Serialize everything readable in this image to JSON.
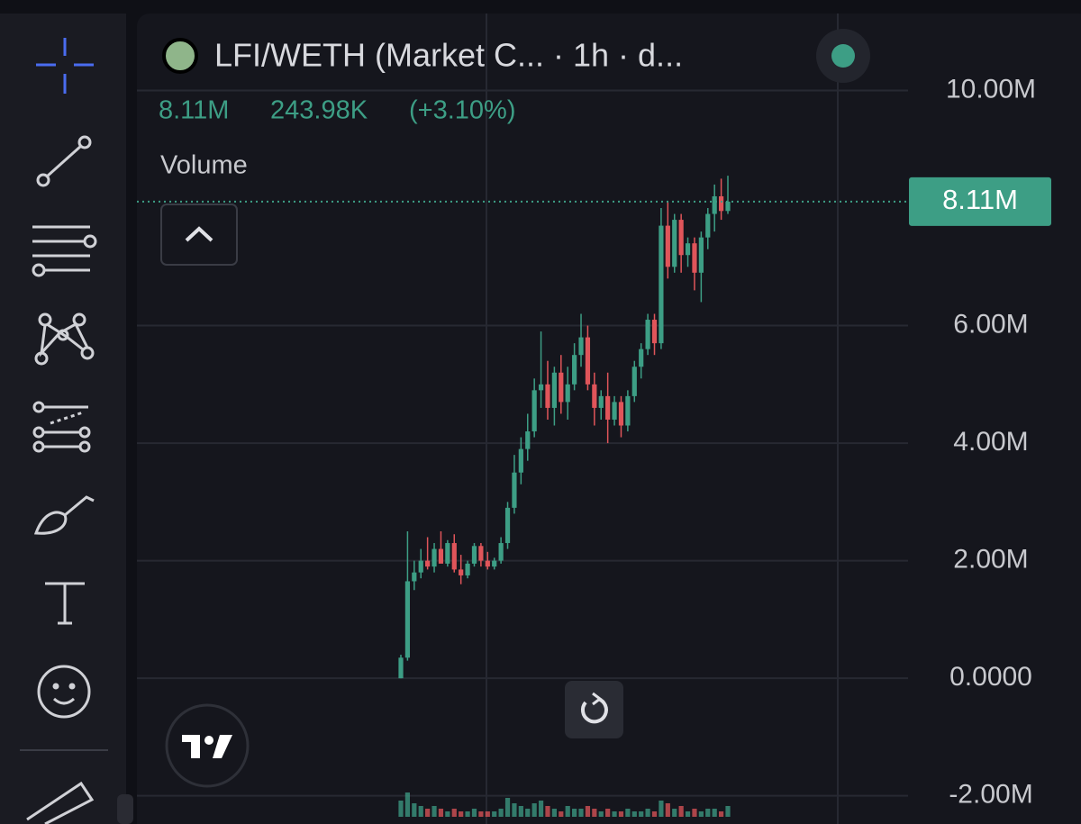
{
  "chart_data": {
    "type": "candlestick",
    "title": "LFI/WETH (Market C...  · 1h · d...",
    "legend_values": [
      "8.11M",
      "243.98K",
      "(+3.10%)"
    ],
    "volume_label": "Volume",
    "ylim": [
      -2.48,
      11.31
    ],
    "yticks": [
      {
        "value": -2,
        "label": "-2.00M"
      },
      {
        "value": 0,
        "label": "0.0000"
      },
      {
        "value": 2,
        "label": "2.00M"
      },
      {
        "value": 4,
        "label": "4.00M"
      },
      {
        "value": 6,
        "label": "6.00M"
      },
      {
        "value": 10,
        "label": "10.00M"
      }
    ],
    "grid": true,
    "up_color": "#3d9e85",
    "down_color": "#e0555a",
    "last_price": {
      "value": 8.11,
      "label": "8.11M"
    },
    "open": [
      0,
      0.35,
      1.65,
      1.8,
      2.0,
      1.9,
      2.2,
      1.95,
      2.3,
      1.85,
      1.75,
      1.95,
      2.25,
      2.0,
      1.9,
      2.0,
      2.3,
      2.9,
      3.5,
      3.9,
      4.2,
      4.9,
      5.0,
      4.6,
      5.2,
      4.7,
      5.0,
      5.5,
      5.8,
      5.0,
      4.6,
      4.8,
      4.4,
      4.7,
      4.3,
      4.8,
      5.3,
      5.6,
      6.1,
      5.7,
      7.7,
      7.0,
      7.8,
      7.2,
      7.4,
      6.9,
      7.5,
      7.9,
      8.2,
      7.95
    ],
    "high": [
      0.4,
      2.5,
      2.0,
      2.2,
      2.4,
      2.3,
      2.5,
      2.35,
      2.45,
      2.1,
      2.0,
      2.3,
      2.3,
      2.15,
      2.05,
      2.4,
      3.0,
      3.8,
      4.1,
      4.5,
      5.1,
      5.9,
      5.4,
      5.3,
      5.5,
      5.3,
      5.7,
      6.2,
      6.0,
      5.2,
      4.9,
      5.2,
      4.8,
      4.8,
      4.9,
      5.4,
      5.7,
      6.2,
      6.2,
      8.0,
      8.1,
      7.9,
      7.9,
      7.5,
      7.5,
      7.6,
      8.0,
      8.4,
      8.5,
      8.55
    ],
    "low": [
      0,
      0.3,
      1.5,
      1.7,
      1.85,
      1.8,
      2.0,
      1.9,
      1.8,
      1.6,
      1.7,
      1.9,
      1.9,
      1.85,
      1.85,
      1.95,
      2.2,
      2.8,
      3.3,
      3.7,
      4.1,
      4.6,
      4.4,
      4.3,
      4.5,
      4.4,
      4.9,
      5.3,
      4.9,
      4.3,
      4.4,
      4.0,
      4.3,
      4.1,
      4.2,
      4.7,
      5.1,
      5.5,
      5.5,
      5.6,
      6.8,
      6.9,
      6.9,
      7.0,
      6.6,
      6.4,
      7.3,
      7.6,
      7.8,
      7.9
    ],
    "close": [
      0.35,
      1.65,
      1.8,
      2.0,
      1.9,
      2.2,
      1.95,
      2.3,
      1.85,
      1.75,
      1.95,
      2.25,
      2.0,
      1.9,
      2.0,
      2.3,
      2.9,
      3.5,
      3.9,
      4.2,
      4.9,
      5.0,
      4.6,
      5.2,
      4.7,
      5.0,
      5.5,
      5.8,
      5.0,
      4.6,
      4.8,
      4.4,
      4.7,
      4.3,
      4.8,
      5.3,
      5.6,
      6.1,
      5.7,
      7.7,
      7.0,
      7.8,
      7.2,
      7.4,
      6.9,
      7.5,
      7.9,
      8.2,
      7.95,
      8.11
    ],
    "volume": [
      6,
      9,
      5,
      4,
      3,
      4,
      3,
      2,
      3,
      2,
      2,
      3,
      2,
      2,
      2,
      3,
      7,
      5,
      4,
      3,
      5,
      6,
      4,
      3,
      2,
      4,
      3,
      3,
      4,
      3,
      2,
      3,
      2,
      2,
      3,
      2,
      2,
      3,
      2,
      6,
      5,
      3,
      4,
      2,
      3,
      2,
      3,
      3,
      2,
      4
    ]
  }
}
